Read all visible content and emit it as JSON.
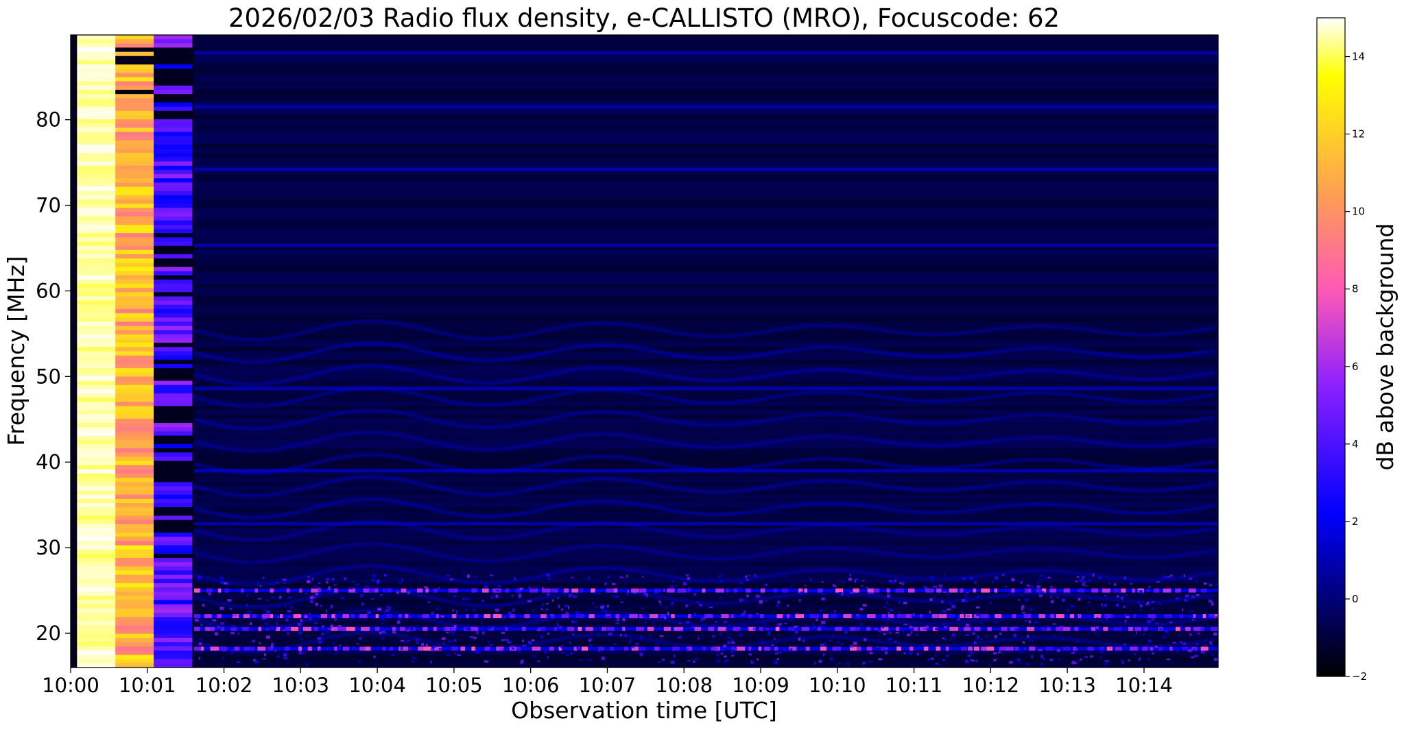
{
  "chart_data": {
    "type": "heatmap",
    "title": "2026/02/03  Radio flux density, e-CALLISTO (MRO), Focuscode: 62",
    "xlabel": "Observation time [UTC]",
    "ylabel": "Frequency [MHz]",
    "x_tick_labels": [
      "10:00",
      "10:01",
      "10:02",
      "10:03",
      "10:04",
      "10:05",
      "10:06",
      "10:07",
      "10:08",
      "10:09",
      "10:10",
      "10:11",
      "10:12",
      "10:13",
      "10:14"
    ],
    "x_range": [
      "10:00",
      "10:14:58"
    ],
    "y_ticks": [
      20,
      30,
      40,
      50,
      60,
      70,
      80
    ],
    "ylim": [
      16,
      89.9
    ],
    "colorbar": {
      "label": "dB above background",
      "ticks": [
        -2,
        0,
        2,
        4,
        6,
        8,
        10,
        12,
        14
      ],
      "range": [
        -2,
        15
      ],
      "colormap": "gnuplot2",
      "stops": [
        {
          "value": -2,
          "color": "#000000"
        },
        {
          "value": 0.5,
          "color": "#000096"
        },
        {
          "value": 2.2,
          "color": "#0000ff"
        },
        {
          "value": 5.5,
          "color": "#8c20ff"
        },
        {
          "value": 8.0,
          "color": "#ff5ab4"
        },
        {
          "value": 10.5,
          "color": "#ffa050"
        },
        {
          "value": 13.5,
          "color": "#ffff00"
        },
        {
          "value": 15,
          "color": "#ffffff"
        }
      ]
    },
    "intense_columns": [
      {
        "start": "10:00:05",
        "end": "10:00:35",
        "level": "14-15 dB"
      },
      {
        "start": "10:00:35",
        "end": "10:01:05",
        "level": "9-13 dB"
      },
      {
        "start": "10:01:05",
        "end": "10:01:35",
        "level": "2-6 dB"
      }
    ],
    "narrowband_lines_mhz": [
      87.8,
      81.5,
      74.2,
      65.3,
      48.6,
      39.0,
      32.8,
      25.0,
      22.0,
      20.5,
      18.2
    ],
    "background_level_db": -1
  }
}
